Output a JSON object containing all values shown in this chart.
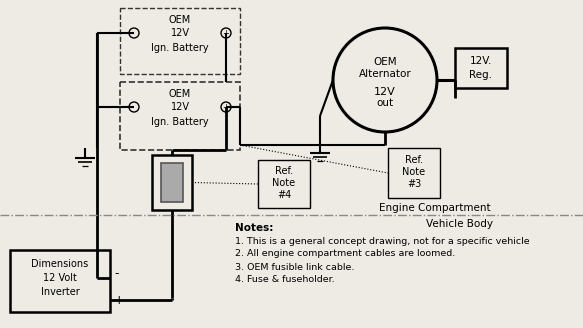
{
  "bg_color": "#eeebe5",
  "line_color": "#000000",
  "fig_width": 5.83,
  "fig_height": 3.28,
  "dpi": 100,
  "notes_title": "Notes:",
  "notes": [
    "1. This is a general concept drawing, not for a specific vehicle",
    "2. All engine compartment cables are loomed.",
    "3. OEM fusible link cable.",
    "4. Fuse & fuseholder."
  ],
  "label_engine": "Engine Compartment",
  "label_vehicle": "Vehicle Body",
  "top_battery_label": [
    "OEM",
    "12V",
    "Ign. Battery"
  ],
  "bot_battery_label": [
    "OEM",
    "12V",
    "Ign. Battery"
  ],
  "alternator_label": [
    "OEM",
    "Alternator",
    "12V",
    "out"
  ],
  "reg_label": [
    "12V.",
    "Reg."
  ],
  "ref3_label": [
    "Ref.",
    "Note",
    "#3"
  ],
  "ref4_label": [
    "Ref.",
    "Note",
    "#4"
  ],
  "inverter_label": [
    "Dimensions",
    "12 Volt",
    "Inverter"
  ]
}
